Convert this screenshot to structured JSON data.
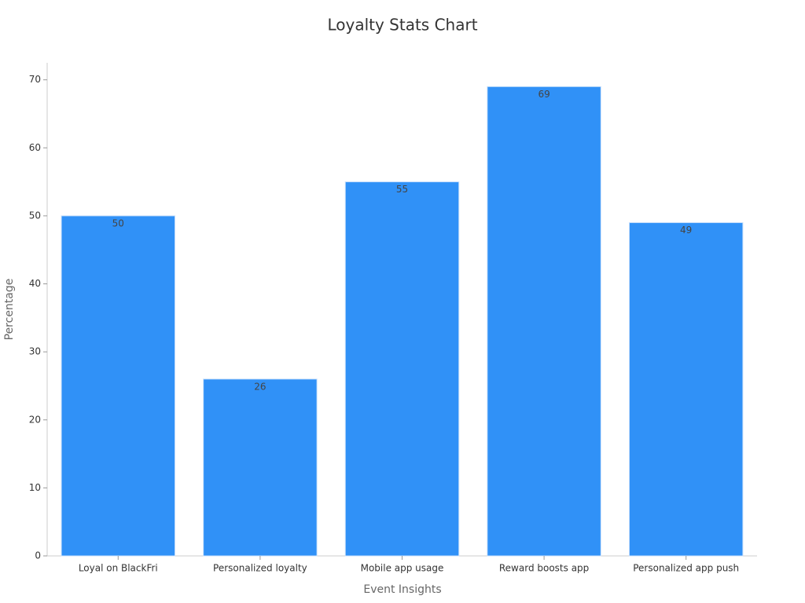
{
  "chart_data": {
    "type": "bar",
    "title": "Loyalty Stats Chart",
    "x_label": "Event Insights",
    "y_label": "Percentage",
    "categories": [
      "Loyal on BlackFri",
      "Personalized loyalty",
      "Mobile app usage",
      "Reward boosts app",
      "Personalized app push"
    ],
    "values": [
      50,
      26,
      55,
      69,
      49
    ],
    "color": "#3091f7",
    "ylim": [
      0,
      72.5
    ],
    "yticks": [
      0,
      10,
      20,
      30,
      40,
      50,
      60,
      70
    ],
    "grid": false
  }
}
